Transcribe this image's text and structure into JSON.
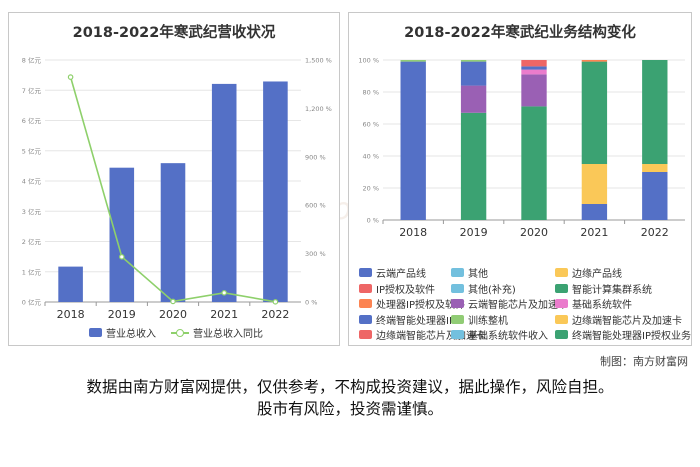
{
  "footer": {
    "credit": "制图：南方财富网",
    "disclaimer_line1": "数据由南方财富网提供，仅供参考，不构成投资建议，据此操作，风险自担。",
    "disclaimer_line2": "股市有风险，投资需谨慎。"
  },
  "chart_data": [
    {
      "type": "bar",
      "title": "2018-2022年寒武纪营收状况",
      "categories": [
        "2018",
        "2019",
        "2020",
        "2021",
        "2022"
      ],
      "left_axis_ticks": [
        "0 亿元",
        "1 亿元",
        "2 亿元",
        "3 亿元",
        "4 亿元",
        "5 亿元",
        "6 亿元",
        "7 亿元",
        "8 亿元"
      ],
      "right_axis_ticks": [
        "0 %",
        "300 %",
        "600 %",
        "900 %",
        "1,200 %",
        "1,500 %"
      ],
      "ylim": [
        0,
        8
      ],
      "y2lim": [
        0,
        1500
      ],
      "grid": true,
      "legend_position": "bottom",
      "series": [
        {
          "name": "营业总收入",
          "kind": "bar",
          "axis": "left",
          "color": "#5470c6",
          "values": [
            1.17,
            4.44,
            4.59,
            7.21,
            7.29
          ]
        },
        {
          "name": "营业总收入同比",
          "kind": "line",
          "axis": "right",
          "color": "#8ed06b",
          "values": [
            1394,
            280,
            3.4,
            57,
            1.1
          ]
        }
      ]
    },
    {
      "type": "bar",
      "stacked": true,
      "title": "2018-2022年寒武纪业务结构变化",
      "categories": [
        "2018",
        "2019",
        "2020",
        "2021",
        "2022"
      ],
      "y_axis_ticks": [
        "0 %",
        "20 %",
        "40 %",
        "60 %",
        "80 %",
        "100 %"
      ],
      "ylim": [
        0,
        100
      ],
      "grid": true,
      "legend_position": "bottom",
      "series": [
        {
          "name": "云端产品线",
          "color": "#5470c6",
          "values": [
            0,
            0,
            0,
            10,
            30
          ]
        },
        {
          "name": "其他",
          "color": "#73c0de",
          "values": [
            0,
            0,
            0,
            0,
            0
          ]
        },
        {
          "name": "边缘产品线",
          "color": "#fac858",
          "values": [
            0,
            0,
            0,
            25,
            5
          ]
        },
        {
          "name": "IP授权及软件",
          "color": "#ee6666",
          "values": [
            0,
            0,
            0,
            0,
            0
          ]
        },
        {
          "name": "其他(补充)",
          "color": "#73c0de",
          "values": [
            0,
            0,
            0,
            0,
            0
          ]
        },
        {
          "name": "智能计算集群系统",
          "color": "#3ba272",
          "values": [
            0,
            67,
            71,
            64,
            65
          ]
        },
        {
          "name": "处理器IP授权及软件",
          "color": "#fc8452",
          "values": [
            0,
            0,
            0,
            1,
            0
          ]
        },
        {
          "name": "云端智能芯片及加速卡",
          "color": "#9a60b4",
          "values": [
            0,
            17,
            20,
            0,
            0
          ]
        },
        {
          "name": "基础系统软件",
          "color": "#ea7ccc",
          "values": [
            0,
            0,
            3,
            0,
            0
          ]
        },
        {
          "name": "终端智能处理器IP",
          "color": "#5470c6",
          "values": [
            99,
            15,
            2,
            0,
            0
          ]
        },
        {
          "name": "训练整机",
          "color": "#91cc75",
          "values": [
            1,
            1,
            0,
            0,
            0
          ]
        },
        {
          "name": "边缘端智能芯片及加速卡",
          "color": "#fac858",
          "values": [
            0,
            0,
            0,
            0,
            0
          ]
        },
        {
          "name": "边缘端智能芯片及加速卡",
          "color": "#ee6666",
          "values": [
            0,
            0,
            4,
            0,
            0
          ]
        },
        {
          "name": "基础系统软件收入",
          "color": "#73c0de",
          "values": [
            0,
            0,
            0,
            0,
            0
          ]
        },
        {
          "name": "终端智能处理器IP授权业务",
          "color": "#3ba272",
          "values": [
            0,
            0,
            0,
            0,
            0
          ]
        }
      ]
    }
  ]
}
